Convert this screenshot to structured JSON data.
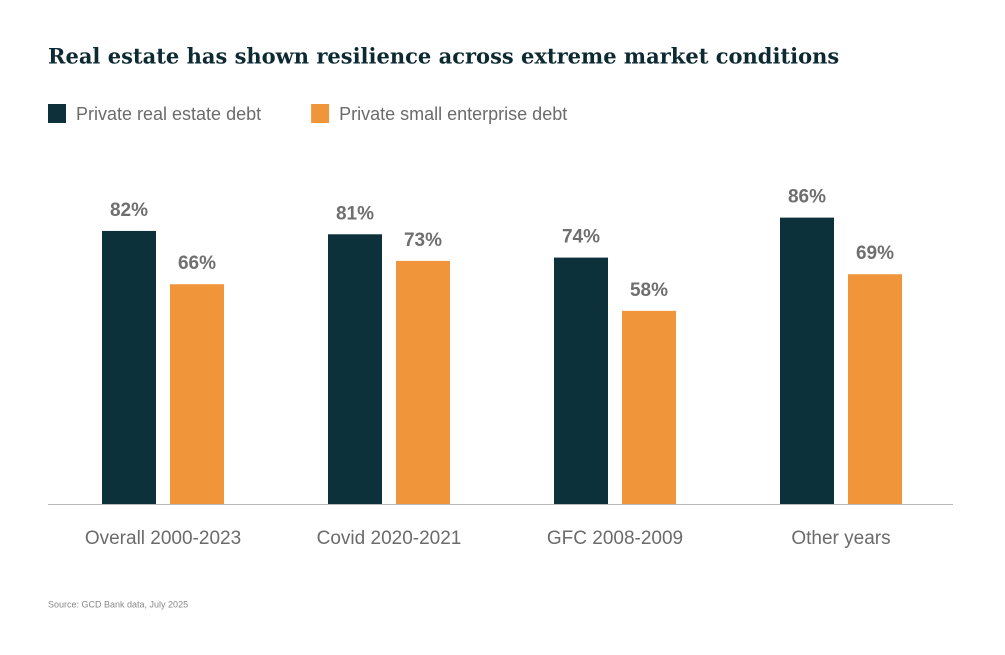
{
  "chart_data": {
    "type": "bar",
    "title": "Real estate has shown resilience across extreme market conditions",
    "categories": [
      "Overall 2000-2023",
      "Covid 2020-2021",
      "GFC 2008-2009",
      "Other years"
    ],
    "series": [
      {
        "name": "Private real estate debt",
        "color": "#0d313b",
        "values": [
          82,
          81,
          74,
          86
        ],
        "value_labels": [
          "82%",
          "81%",
          "74%",
          "86%"
        ]
      },
      {
        "name": "Private small enterprise debt",
        "color": "#f0953a",
        "values": [
          66,
          73,
          58,
          69
        ],
        "value_labels": [
          "66%",
          "73%",
          "58%",
          "69%"
        ]
      }
    ],
    "source": "Source: GCD Bank data, July 2025"
  }
}
